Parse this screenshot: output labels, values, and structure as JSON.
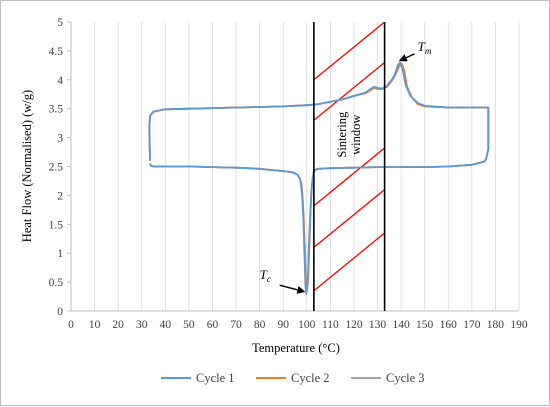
{
  "chart_data": {
    "type": "line",
    "xlabel": "Temperature (°C)",
    "ylabel": "Heat Flow (Normalised) (w/g)",
    "xlim": [
      0,
      190
    ],
    "ylim": [
      0,
      5
    ],
    "xticks": [
      0,
      10,
      20,
      30,
      40,
      50,
      60,
      70,
      80,
      90,
      100,
      110,
      120,
      130,
      140,
      150,
      160,
      170,
      180,
      190
    ],
    "yticks": [
      0,
      0.5,
      1,
      1.5,
      2,
      2.5,
      3,
      3.5,
      4,
      4.5,
      5
    ],
    "grid": "vertical",
    "legend_position": "bottom",
    "colors": {
      "cycle1": "#5b9bd5",
      "cycle2": "#ed7d31",
      "cycle3": "#a5a5a5",
      "window": "#ff0000"
    },
    "series": [
      {
        "name": "Cycle 1",
        "color": "#5b9bd5",
        "x": [
          33.5,
          33.2,
          33.6,
          35,
          40,
          50,
          60,
          70,
          80,
          90,
          100,
          105,
          110,
          115,
          120,
          125,
          127,
          128.5,
          130,
          132,
          134,
          136,
          137.5,
          138.5,
          139.5,
          140.5,
          142,
          144,
          147,
          150,
          160,
          170,
          176.8,
          177,
          177,
          176,
          175,
          170,
          160,
          150,
          140,
          130,
          120,
          110,
          105,
          104,
          103,
          102.5,
          102,
          101.5,
          101,
          100.5,
          100,
          99.8,
          99.4,
          99,
          98.5,
          98,
          97.5,
          97,
          96,
          94,
          90,
          85,
          80,
          70,
          60,
          50,
          40,
          35,
          34,
          33.5
        ],
        "y": [
          2.6,
          3.2,
          3.38,
          3.45,
          3.49,
          3.5,
          3.51,
          3.52,
          3.53,
          3.54,
          3.56,
          3.58,
          3.62,
          3.66,
          3.72,
          3.78,
          3.84,
          3.88,
          3.86,
          3.85,
          3.9,
          4.0,
          4.1,
          4.25,
          4.3,
          4.2,
          3.9,
          3.72,
          3.6,
          3.55,
          3.52,
          3.52,
          3.52,
          3.52,
          2.8,
          2.62,
          2.58,
          2.53,
          2.5,
          2.49,
          2.49,
          2.49,
          2.48,
          2.47,
          2.46,
          2.45,
          2.42,
          2.3,
          2.1,
          1.6,
          1.0,
          0.5,
          0.35,
          0.3,
          0.45,
          1.0,
          1.6,
          2.0,
          2.2,
          2.3,
          2.36,
          2.4,
          2.42,
          2.44,
          2.46,
          2.48,
          2.49,
          2.5,
          2.5,
          2.5,
          2.51,
          2.55
        ]
      },
      {
        "name": "Cycle 2",
        "color": "#ed7d31",
        "x": [
          33.5,
          33.2,
          33.6,
          35,
          40,
          50,
          60,
          70,
          80,
          90,
          100,
          105,
          110,
          115,
          120,
          125,
          127,
          128.5,
          130,
          132,
          134,
          136,
          137.5,
          139,
          140.2,
          141.2,
          142.5,
          144.5,
          147,
          150,
          160,
          170,
          176.5,
          177,
          177,
          176,
          175,
          170,
          160,
          150,
          140,
          130,
          120,
          110,
          105,
          104,
          103,
          102.5,
          102,
          101.5,
          101,
          100.6,
          100.2,
          100,
          99.6,
          99.2,
          98.7,
          98.2,
          97.7,
          97,
          96,
          94,
          90,
          85,
          80,
          70,
          60,
          50,
          40,
          35,
          34,
          33.5
        ],
        "y": [
          2.6,
          3.2,
          3.38,
          3.45,
          3.49,
          3.5,
          3.51,
          3.52,
          3.53,
          3.54,
          3.56,
          3.58,
          3.62,
          3.66,
          3.72,
          3.77,
          3.82,
          3.86,
          3.84,
          3.84,
          3.88,
          3.98,
          4.08,
          4.22,
          4.28,
          4.18,
          3.88,
          3.7,
          3.58,
          3.54,
          3.52,
          3.52,
          3.52,
          3.52,
          2.8,
          2.62,
          2.58,
          2.53,
          2.5,
          2.49,
          2.49,
          2.49,
          2.48,
          2.47,
          2.46,
          2.45,
          2.42,
          2.3,
          2.1,
          1.7,
          1.2,
          0.7,
          0.45,
          0.4,
          0.55,
          1.05,
          1.6,
          2.0,
          2.2,
          2.3,
          2.36,
          2.4,
          2.42,
          2.44,
          2.46,
          2.48,
          2.49,
          2.5,
          2.5,
          2.5,
          2.51,
          2.55
        ]
      },
      {
        "name": "Cycle 3",
        "color": "#a5a5a5",
        "x": [
          33.5,
          33.2,
          33.6,
          35,
          40,
          50,
          60,
          70,
          80,
          90,
          100,
          105,
          110,
          115,
          120,
          125,
          127,
          128.5,
          130,
          132,
          134,
          136,
          137.5,
          139,
          140.2,
          141.2,
          142.5,
          144.5,
          147,
          150,
          160,
          170,
          176.5,
          177,
          177,
          176,
          175,
          170,
          160,
          150,
          140,
          130,
          120,
          110,
          105,
          104,
          103,
          102.5,
          102,
          101.5,
          101,
          100.6,
          100.2,
          100,
          99.6,
          99.2,
          98.7,
          98.2,
          97.7,
          97,
          96,
          94,
          90,
          85,
          80,
          70,
          60,
          50,
          40,
          35,
          34,
          33.5
        ],
        "y": [
          2.6,
          3.2,
          3.38,
          3.45,
          3.49,
          3.5,
          3.51,
          3.52,
          3.53,
          3.54,
          3.56,
          3.58,
          3.62,
          3.66,
          3.72,
          3.77,
          3.82,
          3.86,
          3.84,
          3.84,
          3.88,
          3.98,
          4.08,
          4.22,
          4.28,
          4.18,
          3.88,
          3.7,
          3.58,
          3.54,
          3.52,
          3.52,
          3.52,
          3.52,
          2.8,
          2.62,
          2.58,
          2.53,
          2.5,
          2.49,
          2.49,
          2.49,
          2.48,
          2.47,
          2.46,
          2.45,
          2.42,
          2.3,
          2.1,
          1.7,
          1.2,
          0.7,
          0.45,
          0.4,
          0.55,
          1.05,
          1.6,
          2.0,
          2.2,
          2.3,
          2.36,
          2.4,
          2.42,
          2.44,
          2.46,
          2.48,
          2.49,
          2.5,
          2.5,
          2.5,
          2.51,
          2.55
        ]
      }
    ],
    "sintering_window": {
      "label_line1": "Sintering",
      "label_line2": "window",
      "x_start": 103,
      "x_end": 133,
      "hatch_lines": [
        {
          "x1": 103,
          "y1": 0.35,
          "x2": 133,
          "y2": 1.35
        },
        {
          "x1": 103,
          "y1": 1.1,
          "x2": 133,
          "y2": 2.1
        },
        {
          "x1": 103,
          "y1": 1.82,
          "x2": 133,
          "y2": 2.82
        },
        {
          "x1": 103,
          "y1": 3.3,
          "x2": 133,
          "y2": 4.3
        },
        {
          "x1": 103,
          "y1": 4.0,
          "x2": 133,
          "y2": 5.0
        }
      ]
    },
    "annotations": [
      {
        "name": "tm",
        "main": "T",
        "sub": "m",
        "point": [
          139,
          4.28
        ],
        "text_at": [
          147,
          4.5
        ]
      },
      {
        "name": "tc",
        "main": "T",
        "sub": "c",
        "point": [
          99.8,
          0.3
        ],
        "text_at": [
          80,
          0.55
        ]
      }
    ]
  }
}
